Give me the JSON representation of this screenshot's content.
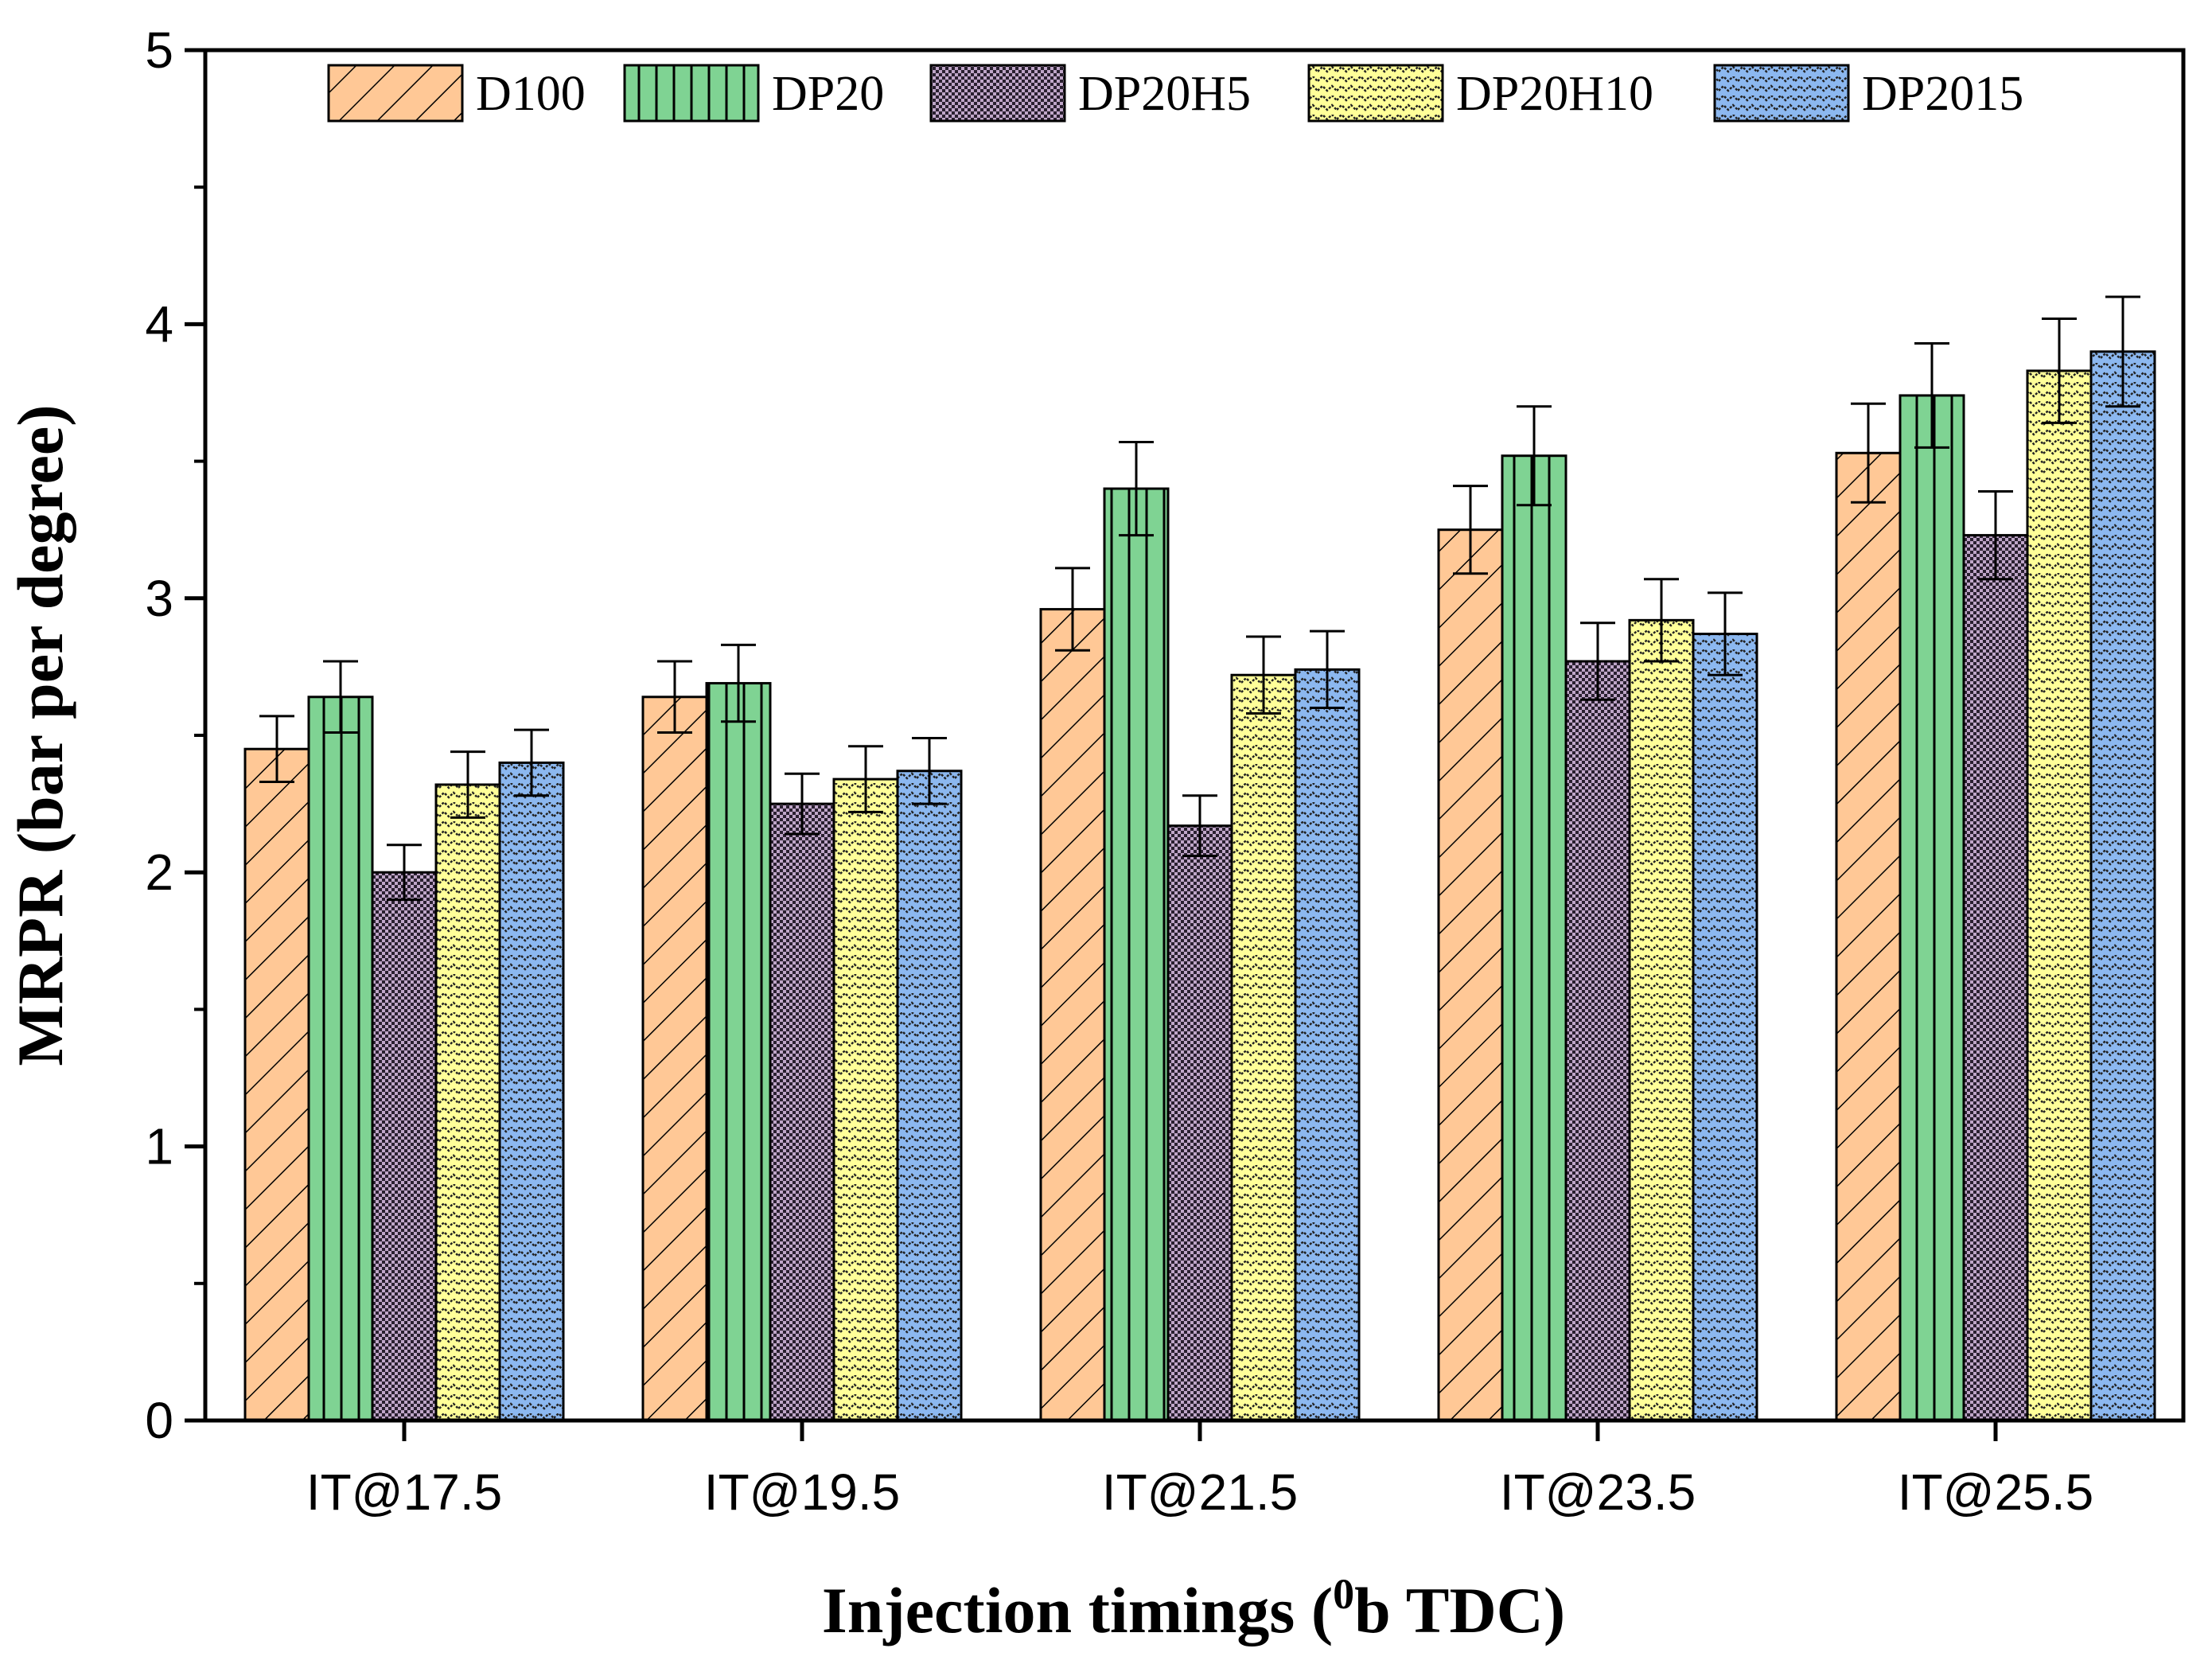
{
  "chart_data": {
    "type": "bar",
    "title": "",
    "xlabel": "Injection timings (",
    "xlabel_sup": "0",
    "xlabel_end": "b TDC)",
    "ylabel": "MRPR (bar per degree)",
    "ylim": [
      0,
      5
    ],
    "yticks": [
      0,
      1,
      2,
      3,
      4,
      5
    ],
    "grid": false,
    "legend_position": "top",
    "categories": [
      "IT@17.5",
      "IT@19.5",
      "IT@21.5",
      "IT@23.5",
      "IT@25.5"
    ],
    "series": [
      {
        "name": "D100",
        "color": "#FFC896",
        "pattern": "diagonal-hatch",
        "values": [
          2.45,
          2.64,
          2.96,
          3.25,
          3.53
        ],
        "errors": [
          0.12,
          0.13,
          0.15,
          0.16,
          0.18
        ]
      },
      {
        "name": "DP20",
        "color": "#7FD393",
        "pattern": "vertical-lines",
        "values": [
          2.64,
          2.69,
          3.4,
          3.52,
          3.74
        ],
        "errors": [
          0.13,
          0.14,
          0.17,
          0.18,
          0.19
        ]
      },
      {
        "name": "DP20H5",
        "color": "#BFA6C8",
        "pattern": "fine-checker",
        "values": [
          2.0,
          2.25,
          2.17,
          2.77,
          3.23
        ],
        "errors": [
          0.1,
          0.11,
          0.11,
          0.14,
          0.16
        ]
      },
      {
        "name": "DP20H10",
        "color": "#FFFF99",
        "pattern": "zigzag",
        "values": [
          2.32,
          2.34,
          2.72,
          2.92,
          3.83
        ],
        "errors": [
          0.12,
          0.12,
          0.14,
          0.15,
          0.19
        ]
      },
      {
        "name": "DP2015",
        "color": "#8CB8F0",
        "pattern": "zigzag",
        "values": [
          2.4,
          2.37,
          2.74,
          2.87,
          3.9
        ],
        "errors": [
          0.12,
          0.12,
          0.14,
          0.15,
          0.2
        ]
      }
    ]
  }
}
